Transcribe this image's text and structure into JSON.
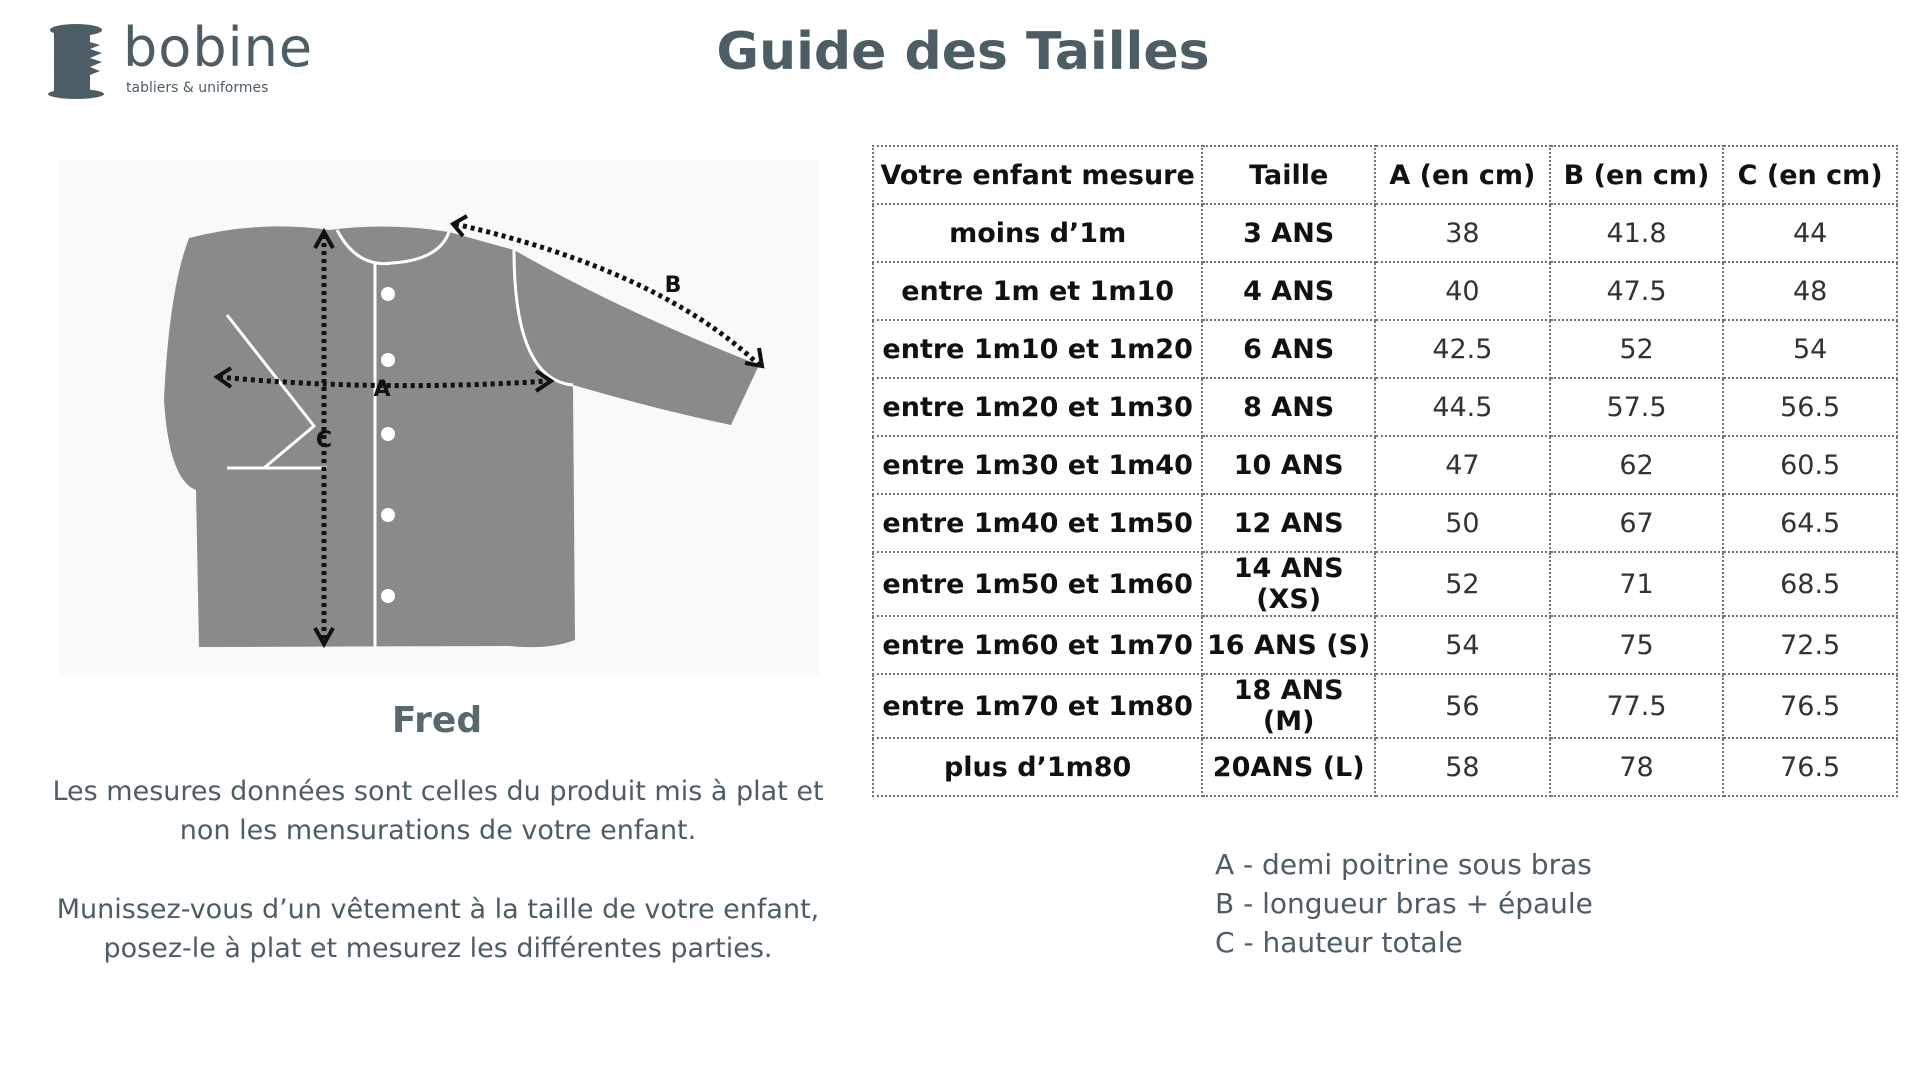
{
  "brand": {
    "name": "bobine",
    "tagline": "tabliers & uniformes",
    "color": "#4d5d66"
  },
  "title": "Guide des Tailles",
  "model": {
    "name": "Fred",
    "labels": {
      "a": "A",
      "b": "B",
      "c": "C"
    }
  },
  "notes": [
    "Les mesures données sont celles du produit mis à plat et",
    "non les mensurations de votre enfant.",
    "Munissez-vous d’un vêtement à la taille de votre enfant,",
    "posez-le à plat et mesurez les différentes parties."
  ],
  "table": {
    "headers": [
      "Votre enfant mesure",
      "Taille",
      "A (en cm)",
      "B (en cm)",
      "C (en cm)"
    ],
    "rows": [
      [
        "moins d’1m",
        "3 ANS",
        "38",
        "41.8",
        "44"
      ],
      [
        "entre 1m et 1m10",
        "4 ANS",
        "40",
        "47.5",
        "48"
      ],
      [
        "entre 1m10 et 1m20",
        "6 ANS",
        "42.5",
        "52",
        "54"
      ],
      [
        "entre 1m20 et 1m30",
        "8 ANS",
        "44.5",
        "57.5",
        "56.5"
      ],
      [
        "entre 1m30 et 1m40",
        "10 ANS",
        "47",
        "62",
        "60.5"
      ],
      [
        "entre 1m40 et 1m50",
        "12 ANS",
        "50",
        "67",
        "64.5"
      ],
      [
        "entre 1m50 et 1m60",
        "14 ANS (XS)",
        "52",
        "71",
        "68.5"
      ],
      [
        "entre 1m60 et 1m70",
        "16 ANS (S)",
        "54",
        "75",
        "72.5"
      ],
      [
        "entre 1m70 et 1m80",
        "18 ANS (M)",
        "56",
        "77.5",
        "76.5"
      ],
      [
        "plus d’1m80",
        "20ANS (L)",
        "58",
        "78",
        "76.5"
      ]
    ]
  },
  "legend": [
    "A - demi poitrine sous bras",
    "B - longueur bras + épaule",
    "C - hauteur totale"
  ]
}
